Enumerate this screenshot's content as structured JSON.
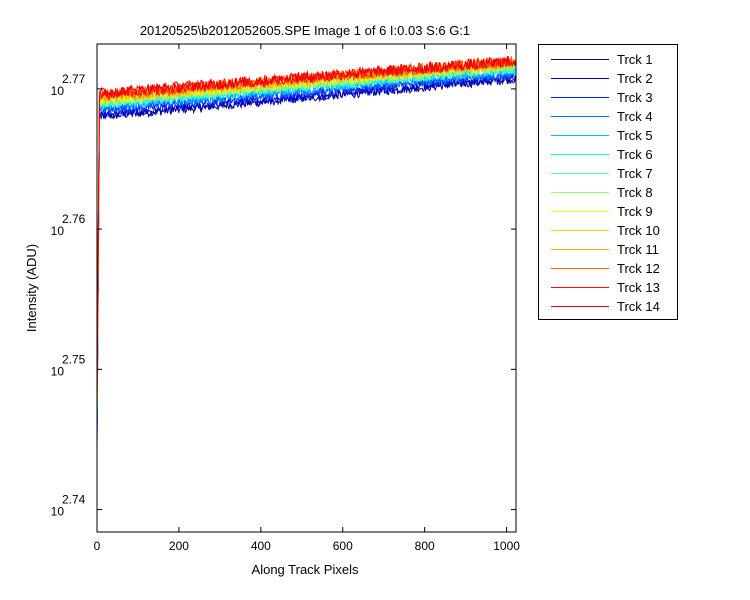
{
  "chart_data": {
    "type": "line",
    "title": "20120525\\b2012052605.SPE  Image 1 of 6  I:0.03  S:6  G:1",
    "xlabel": "Along Track Pixels",
    "ylabel": "Intensity (ADU)",
    "xlim": [
      0,
      1023
    ],
    "ylim": [
      2.7384,
      2.7732
    ],
    "y_scale": "log",
    "x_ticks": [
      0,
      200,
      400,
      600,
      800,
      1000
    ],
    "y_ticks": [
      {
        "value": 2.74,
        "base": "10",
        "exponent": "2.74"
      },
      {
        "value": 2.75,
        "base": "10",
        "exponent": "2.75"
      },
      {
        "value": 2.76,
        "base": "10",
        "exponent": "2.76"
      },
      {
        "value": 2.77,
        "base": "10",
        "exponent": "2.77"
      }
    ],
    "grid": false,
    "legend_position": "outside-right",
    "series": [
      {
        "name": "Trck 1",
        "color": "#00008F",
        "start": 2.7458,
        "plateau": 2.768,
        "end": 2.7707,
        "noise": 0.0003
      },
      {
        "name": "Trck 2",
        "color": "#0000CF",
        "start": 2.744,
        "plateau": 2.7681,
        "end": 2.7708,
        "noise": 0.0003
      },
      {
        "name": "Trck 3",
        "color": "#0020FF",
        "start": 2.745,
        "plateau": 2.7684,
        "end": 2.771,
        "noise": 0.00032
      },
      {
        "name": "Trck 4",
        "color": "#0070FF",
        "start": 2.7455,
        "plateau": 2.7686,
        "end": 2.7711,
        "noise": 0.00032
      },
      {
        "name": "Trck 5",
        "color": "#00BFFF",
        "start": 2.746,
        "plateau": 2.7688,
        "end": 2.7713,
        "noise": 0.00033
      },
      {
        "name": "Trck 6",
        "color": "#10FFEF",
        "start": 2.7462,
        "plateau": 2.7689,
        "end": 2.7714,
        "noise": 0.00033
      },
      {
        "name": "Trck 7",
        "color": "#50FFAF",
        "start": 2.7464,
        "plateau": 2.769,
        "end": 2.7715,
        "noise": 0.00034
      },
      {
        "name": "Trck 8",
        "color": "#9FFF60",
        "start": 2.7466,
        "plateau": 2.7691,
        "end": 2.7716,
        "noise": 0.00034
      },
      {
        "name": "Trck 9",
        "color": "#EFFF10",
        "start": 2.7468,
        "plateau": 2.7692,
        "end": 2.7717,
        "noise": 0.00036
      },
      {
        "name": "Trck 10",
        "color": "#FFCF00",
        "start": 2.747,
        "plateau": 2.7693,
        "end": 2.7718,
        "noise": 0.00038
      },
      {
        "name": "Trck 11",
        "color": "#FFB000",
        "start": 2.7472,
        "plateau": 2.7694,
        "end": 2.7719,
        "noise": 0.0004
      },
      {
        "name": "Trck 12",
        "color": "#FF6000",
        "start": 2.7474,
        "plateau": 2.7695,
        "end": 2.772,
        "noise": 0.0004
      },
      {
        "name": "Trck 13",
        "color": "#FF1000",
        "start": 2.7476,
        "plateau": 2.7696,
        "end": 2.772,
        "noise": 0.0004
      },
      {
        "name": "Trck 14",
        "color": "#EF0000",
        "start": 2.7478,
        "plateau": 2.7697,
        "end": 2.772,
        "noise": 0.0004
      }
    ]
  }
}
